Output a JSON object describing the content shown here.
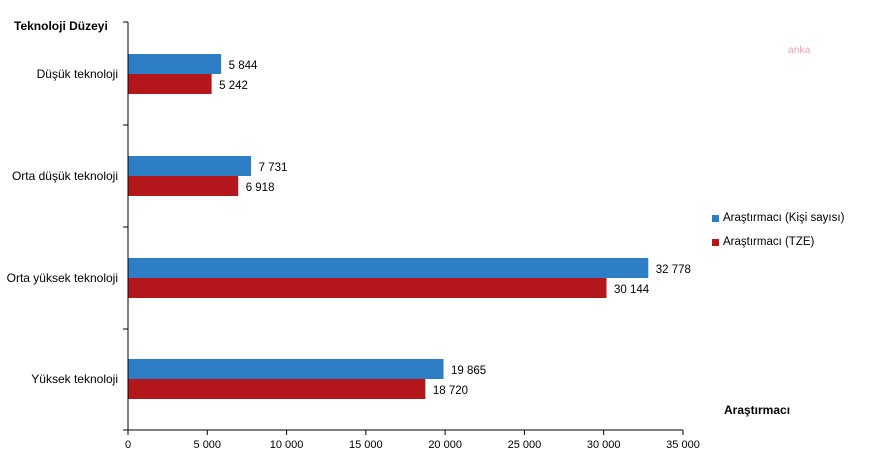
{
  "watermark": "anka",
  "chart_data": {
    "type": "bar",
    "orientation": "horizontal",
    "y_axis_title": "Teknoloji Düzeyi",
    "x_axis_title": "Araştırmacı",
    "categories": [
      "Düşük teknoloji",
      "Orta düşük teknoloji",
      "Orta yüksek teknoloji",
      "Yüksek teknoloji"
    ],
    "series": [
      {
        "name": "Araştırmacı (Kişi sayısı)",
        "color": "#2e7ec6",
        "values": [
          5844,
          7731,
          32778,
          19865
        ],
        "labels": [
          "5 844",
          "7 731",
          "32 778",
          "19 865"
        ]
      },
      {
        "name": "Araştırmacı (TZE)",
        "color": "#b3161b",
        "values": [
          5242,
          6918,
          30144,
          18720
        ],
        "labels": [
          "5 242",
          "6 918",
          "30 144",
          "18 720"
        ]
      }
    ],
    "xlim": [
      0,
      35000
    ],
    "ticks": [
      0,
      5000,
      10000,
      15000,
      20000,
      25000,
      30000,
      35000
    ],
    "tick_labels": [
      "0",
      "5 000",
      "10 000",
      "15 000",
      "20 000",
      "25 000",
      "30 000",
      "35 000"
    ],
    "legend_position": "right",
    "grid": false
  }
}
